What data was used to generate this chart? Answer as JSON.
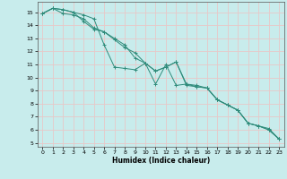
{
  "xlabel": "Humidex (Indice chaleur)",
  "background_color": "#c8ecec",
  "grid_color": "#e8c8c8",
  "line_color": "#2e8b7a",
  "xlim": [
    -0.5,
    23.5
  ],
  "ylim": [
    4.7,
    15.8
  ],
  "xticks": [
    0,
    1,
    2,
    3,
    4,
    5,
    6,
    7,
    8,
    9,
    10,
    11,
    12,
    13,
    14,
    15,
    16,
    17,
    18,
    19,
    20,
    21,
    22,
    23
  ],
  "yticks": [
    5,
    6,
    7,
    8,
    9,
    10,
    11,
    12,
    13,
    14,
    15
  ],
  "line1_x": [
    0,
    1,
    2,
    3,
    4,
    5,
    6,
    7,
    8,
    9,
    10,
    11,
    12,
    13,
    14,
    15,
    16,
    17,
    18,
    19,
    20,
    21,
    22,
    23
  ],
  "line1_y": [
    14.9,
    15.3,
    15.2,
    15.0,
    14.8,
    14.5,
    12.5,
    10.8,
    10.7,
    10.6,
    11.1,
    9.5,
    11.0,
    9.4,
    9.5,
    9.4,
    9.2,
    8.3,
    7.9,
    7.5,
    6.5,
    6.3,
    6.0,
    5.3
  ],
  "line2_x": [
    0,
    1,
    2,
    3,
    4,
    5,
    6,
    7,
    8,
    9,
    10,
    11,
    12,
    13,
    14,
    15,
    16,
    17,
    18,
    19,
    20,
    21,
    22,
    23
  ],
  "line2_y": [
    14.9,
    15.3,
    14.9,
    14.8,
    14.5,
    13.8,
    13.5,
    13.0,
    12.5,
    11.5,
    11.1,
    10.5,
    10.8,
    11.2,
    9.5,
    9.3,
    9.2,
    8.3,
    7.9,
    7.5,
    6.5,
    6.3,
    6.1,
    5.3
  ],
  "line3_x": [
    0,
    1,
    2,
    3,
    4,
    5,
    6,
    7,
    8,
    9,
    10,
    11,
    12,
    13,
    14,
    15,
    16,
    17,
    18,
    19,
    20,
    21,
    22,
    23
  ],
  "line3_y": [
    14.9,
    15.3,
    15.2,
    15.0,
    14.3,
    13.7,
    13.5,
    12.9,
    12.3,
    11.9,
    11.1,
    10.5,
    10.8,
    11.2,
    9.4,
    9.3,
    9.2,
    8.3,
    7.9,
    7.5,
    6.5,
    6.3,
    6.0,
    5.3
  ]
}
